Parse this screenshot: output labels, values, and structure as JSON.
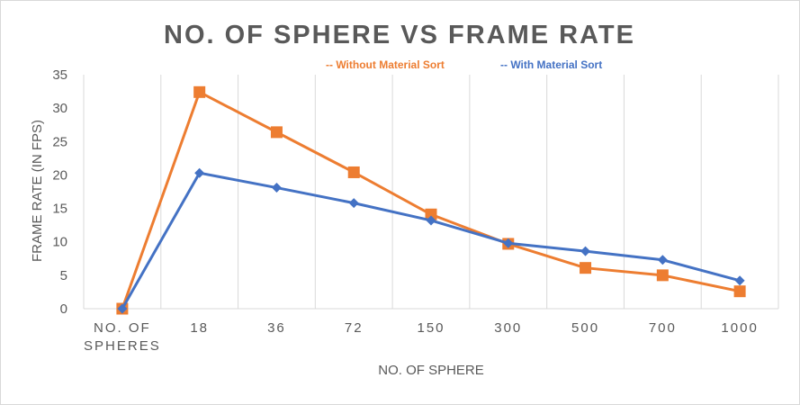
{
  "chart_data": {
    "type": "line",
    "title": "NO. OF SPHERE VS FRAME RATE",
    "xlabel": "NO. OF SPHERE",
    "ylabel": "FRAME RATE (IN FPS)",
    "categories": [
      "NO. OF SPHERES",
      "18",
      "36",
      "72",
      "150",
      "300",
      "500",
      "700",
      "1000"
    ],
    "ylim": [
      0,
      35
    ],
    "yticks": [
      0,
      5,
      10,
      15,
      20,
      25,
      30,
      35
    ],
    "grid": "vertical",
    "legend_position": "top-right",
    "series": [
      {
        "name": "Without Material Sort",
        "legend_label": "-- Without Material Sort",
        "color": "#ED7D31",
        "marker": "square",
        "values": [
          0,
          32.4,
          26.4,
          20.4,
          14.1,
          9.7,
          6.1,
          5.0,
          2.6
        ]
      },
      {
        "name": "With Material Sort",
        "legend_label": "-- With Material Sort",
        "color": "#4472C4",
        "marker": "diamond",
        "values": [
          0,
          20.3,
          18.1,
          15.8,
          13.2,
          9.8,
          8.6,
          7.3,
          4.2
        ]
      }
    ]
  }
}
